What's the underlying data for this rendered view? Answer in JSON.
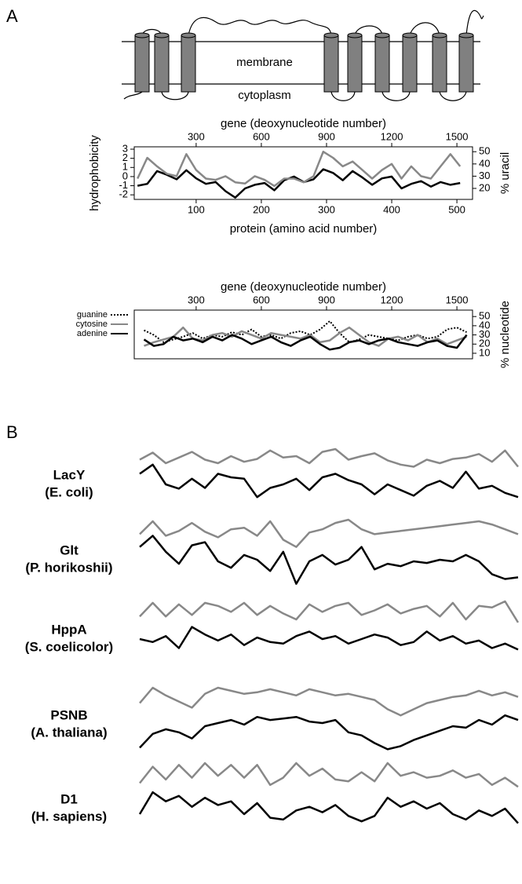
{
  "panel_labels": [
    "A",
    "B"
  ],
  "diagram": {
    "labels": [
      "membrane",
      "cytoplasm"
    ]
  },
  "chart_data": [
    {
      "type": "line",
      "xlabel": "protein (amino acid number)",
      "x2label": "gene (deoxynucleotide number)",
      "ylabel": "hydrophobicity",
      "y2label": "% uracil",
      "x": [
        10,
        25,
        40,
        55,
        70,
        85,
        100,
        115,
        130,
        145,
        160,
        175,
        190,
        205,
        220,
        235,
        250,
        265,
        280,
        295,
        310,
        325,
        340,
        355,
        370,
        385,
        400,
        415,
        430,
        445,
        460,
        475,
        490,
        505
      ],
      "xlim": [
        5,
        524
      ],
      "xticks": [
        100,
        200,
        300,
        400,
        500
      ],
      "x2lim": [
        15,
        1572
      ],
      "x2ticks": [
        300,
        600,
        900,
        1200,
        1500
      ],
      "ylim": [
        -2.5,
        3.26
      ],
      "yticks": [
        -2,
        -1,
        0,
        1,
        2,
        3
      ],
      "y2lim": [
        11,
        54
      ],
      "y2ticks": [
        20,
        30,
        40,
        50
      ],
      "series": [
        {
          "color": "#000000",
          "values": [
            -1,
            -0.8,
            0.6,
            0.2,
            -0.3,
            0.7,
            -0.2,
            -0.8,
            -0.6,
            -1.6,
            -2.3,
            -1.3,
            -0.9,
            -0.7,
            -1.5,
            -0.4,
            0,
            -0.6,
            -0.3,
            0.8,
            0.4,
            -0.4,
            0.6,
            -0.1,
            -0.9,
            -0.2,
            0,
            -1.3,
            -0.8,
            -0.5,
            -1.1,
            -0.6,
            -0.9,
            -0.7
          ]
        },
        {
          "color": "#888888",
          "axis": "y2",
          "values": [
            28,
            45,
            38,
            32,
            30,
            48,
            35,
            28,
            27,
            30,
            25,
            24,
            30,
            27,
            22,
            28,
            28,
            25,
            30,
            50,
            45,
            38,
            42,
            35,
            28,
            35,
            40,
            28,
            38,
            30,
            28,
            38,
            48,
            38
          ]
        }
      ]
    },
    {
      "type": "line",
      "x2label": "gene (deoxynucleotide number)",
      "y2label": "% nucleotide",
      "x": [
        60,
        105,
        150,
        195,
        240,
        285,
        330,
        375,
        420,
        465,
        510,
        555,
        600,
        645,
        690,
        735,
        780,
        825,
        870,
        915,
        960,
        1005,
        1050,
        1095,
        1140,
        1185,
        1230,
        1275,
        1320,
        1365,
        1410,
        1455,
        1500,
        1545
      ],
      "x2lim": [
        15,
        1572
      ],
      "x2ticks": [
        300,
        600,
        900,
        1200,
        1500
      ],
      "y2lim": [
        4,
        57
      ],
      "y2ticks": [
        10,
        20,
        30,
        40,
        50
      ],
      "legend": "left",
      "series": [
        {
          "name": "guanine",
          "color": "#000000",
          "dash": "dotted",
          "axis": "y2",
          "values": [
            35,
            30,
            22,
            25,
            28,
            32,
            26,
            30,
            28,
            33,
            30,
            36,
            28,
            30,
            26,
            32,
            34,
            30,
            36,
            45,
            32,
            22,
            25,
            30,
            28,
            26,
            24,
            28,
            30,
            26,
            28,
            36,
            38,
            33
          ]
        },
        {
          "name": "cytosine",
          "color": "#888888",
          "axis": "y2",
          "values": [
            18,
            22,
            25,
            28,
            38,
            26,
            24,
            30,
            32,
            28,
            34,
            30,
            26,
            32,
            30,
            28,
            26,
            30,
            22,
            24,
            32,
            38,
            30,
            22,
            18,
            26,
            28,
            24,
            30,
            22,
            26,
            20,
            24,
            28
          ]
        },
        {
          "name": "adenine",
          "color": "#000000",
          "axis": "y2",
          "values": [
            25,
            18,
            20,
            28,
            24,
            26,
            22,
            28,
            24,
            30,
            26,
            20,
            24,
            28,
            22,
            18,
            24,
            28,
            20,
            14,
            16,
            22,
            24,
            20,
            24,
            26,
            22,
            20,
            18,
            22,
            24,
            18,
            16,
            30
          ]
        }
      ]
    },
    {
      "type": "line",
      "title": "LacY",
      "subtitle": "(E. coli)",
      "ylim": [
        0,
        10
      ],
      "series": [
        {
          "color": "#888888",
          "values": [
            8.5,
            9.5,
            8,
            8.8,
            9.6,
            8.5,
            8,
            9,
            8.2,
            8.6,
            9.8,
            8.8,
            9,
            8,
            9.6,
            10,
            8.5,
            9,
            9.4,
            8.4,
            7.8,
            7.5,
            8.5,
            8,
            8.6,
            8.8,
            9.3,
            8.2,
            9.8,
            7.5
          ]
        },
        {
          "color": "#000000",
          "values": [
            6.5,
            7.8,
            5,
            4.4,
            5.8,
            4.5,
            6.5,
            6,
            5.8,
            3.2,
            4.5,
            5,
            5.8,
            4.2,
            6,
            6.5,
            5.6,
            5,
            3.6,
            5,
            4.2,
            3.4,
            4.8,
            5.5,
            4.5,
            6.8,
            4.4,
            4.8,
            3.8,
            3.2
          ]
        }
      ]
    },
    {
      "type": "line",
      "title": "Glt",
      "subtitle": "(P. horikoshii)",
      "ylim": [
        0,
        10
      ],
      "series": [
        {
          "color": "#888888",
          "values": [
            8.2,
            9.8,
            8,
            8.6,
            9.6,
            8.5,
            7.8,
            8.8,
            9,
            8,
            9.8,
            7.5,
            6.6,
            8.4,
            8.8,
            9.6,
            10,
            8.8,
            8.2,
            8.4,
            8.6,
            8.8,
            9,
            9.2,
            9.4,
            9.6,
            9.8,
            9.4,
            8.8,
            8.2
          ]
        },
        {
          "color": "#000000",
          "values": [
            6.6,
            8,
            6,
            4.5,
            6.8,
            7.2,
            4.8,
            4,
            5.6,
            5,
            3.6,
            6,
            2,
            4.8,
            5.6,
            4.4,
            5,
            6.6,
            3.8,
            4.5,
            4.2,
            4.8,
            4.6,
            5,
            4.8,
            5.6,
            4.8,
            3.2,
            2.6,
            2.8
          ]
        }
      ]
    },
    {
      "type": "line",
      "title": "HppA",
      "subtitle": "(S. coelicolor)",
      "ylim": [
        0,
        10
      ],
      "series": [
        {
          "color": "#888888",
          "values": [
            8,
            9.8,
            8,
            9.6,
            8.2,
            9.8,
            9.4,
            8.6,
            9.8,
            8.2,
            9.4,
            8.4,
            7.6,
            9.6,
            8.6,
            9.4,
            9.8,
            8.2,
            8.8,
            9.6,
            8.4,
            9,
            9.4,
            8,
            9.8,
            7.6,
            9.4,
            9.2,
            10,
            7.2
          ]
        },
        {
          "color": "#000000",
          "values": [
            5,
            4.6,
            5.4,
            3.8,
            6.6,
            5.6,
            4.8,
            5.6,
            4.2,
            5.2,
            4.6,
            4.4,
            5.4,
            6,
            5,
            5.4,
            4.4,
            5,
            5.6,
            5.2,
            4.2,
            4.6,
            6,
            4.8,
            5.4,
            4.4,
            4.8,
            3.8,
            4.4,
            3.6
          ]
        }
      ]
    },
    {
      "type": "line",
      "title": "PSNB",
      "subtitle": "(A. thaliana)",
      "ylim": [
        0,
        10
      ],
      "series": [
        {
          "color": "#888888",
          "values": [
            7.8,
            9.8,
            8.8,
            8,
            7.2,
            9,
            9.8,
            9.4,
            9,
            9.2,
            9.6,
            9.2,
            8.8,
            9.6,
            9.2,
            8.8,
            9,
            8.6,
            8.2,
            7,
            6.2,
            7,
            7.8,
            8.2,
            8.6,
            8.8,
            9.4,
            8.8,
            9.2,
            8.6
          ]
        },
        {
          "color": "#000000",
          "values": [
            2,
            3.8,
            4.4,
            4,
            3.2,
            4.8,
            5.2,
            5.6,
            5,
            6,
            5.6,
            5.8,
            6,
            5.4,
            5.2,
            5.6,
            4,
            3.6,
            2.6,
            1.8,
            2.2,
            3,
            3.6,
            4.2,
            4.8,
            4.6,
            5.6,
            5,
            6.2,
            5.6
          ]
        }
      ]
    },
    {
      "type": "line",
      "title": "D1",
      "subtitle": "(H. sapiens)",
      "ylim": [
        0,
        10
      ],
      "series": [
        {
          "color": "#888888",
          "values": [
            7.8,
            9.6,
            8.2,
            9.8,
            8.4,
            10,
            8.6,
            9.8,
            8.4,
            9.8,
            7.6,
            8.4,
            10,
            8.6,
            9.4,
            8.2,
            8,
            9,
            8,
            10,
            8.6,
            9,
            8.4,
            8.6,
            9.2,
            8.4,
            8.8,
            7.6,
            8.4,
            7.4
          ]
        },
        {
          "color": "#000000",
          "values": [
            4.4,
            6.8,
            5.8,
            6.4,
            5.2,
            6.2,
            5.4,
            5.8,
            4.4,
            5.6,
            4,
            3.8,
            4.8,
            5.2,
            4.6,
            5.4,
            4.2,
            3.6,
            4.2,
            6.2,
            5.2,
            5.8,
            5,
            5.6,
            4.4,
            3.8,
            4.8,
            4.2,
            5,
            3.4
          ]
        }
      ]
    }
  ]
}
